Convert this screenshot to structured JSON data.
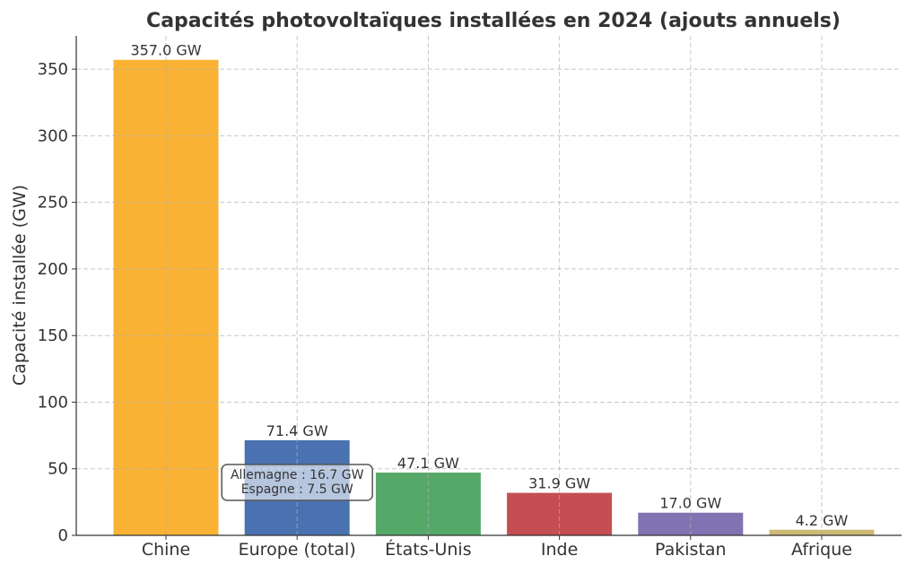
{
  "chart_data": {
    "type": "bar",
    "title": "Capacités photovoltaïques installées en 2024 (ajouts annuels)",
    "xlabel": "",
    "ylabel": "Capacité installée (GW)",
    "categories": [
      "Chine",
      "Europe (total)",
      "États-Unis",
      "Inde",
      "Pakistan",
      "Afrique"
    ],
    "values": [
      357.0,
      71.4,
      47.1,
      31.9,
      17.0,
      4.2
    ],
    "data_labels": [
      "357.0 GW",
      "71.4 GW",
      "47.1 GW",
      "31.9 GW",
      "17.0 GW",
      "4.2 GW"
    ],
    "colors": [
      "#F9B233",
      "#4A72B0",
      "#55A868",
      "#C44E52",
      "#8172B2",
      "#CCB974"
    ],
    "ylim": [
      0,
      375
    ],
    "yticks": [
      0,
      50,
      100,
      150,
      200,
      250,
      300,
      350
    ],
    "grid": true,
    "annotation": {
      "category": "Europe (total)",
      "lines": [
        "Allemagne : 16.7 GW",
        "Espagne : 7.5 GW"
      ]
    }
  }
}
